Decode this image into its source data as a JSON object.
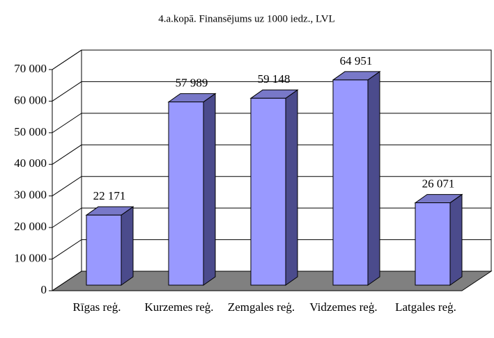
{
  "chart_data": {
    "type": "bar",
    "title": "4.a.kopā. Finansējums uz 1000 iedz., LVL",
    "categories": [
      "Rīgas reģ.",
      "Kurzemes reģ.",
      "Zemgales reģ.",
      "Vidzemes reģ.",
      "Latgales reģ."
    ],
    "values": [
      22171,
      57989,
      59148,
      64951,
      26071
    ],
    "value_labels": [
      "22 171",
      "57 989",
      "59 148",
      "64 951",
      "26 071"
    ],
    "color": "#9999ff",
    "ylim": [
      0,
      70000
    ],
    "yticks": [
      0,
      {
        "value": 10000,
        "label": "10 000"
      },
      {
        "value": 20000,
        "label": "20 000"
      },
      {
        "value": 30000,
        "label": "30 000"
      },
      {
        "value": 40000,
        "label": "40 000"
      },
      {
        "value": 50000,
        "label": "50 000"
      },
      {
        "value": 60000,
        "label": "60 000"
      },
      {
        "value": 70000,
        "label": "70 000"
      }
    ],
    "grid": true
  }
}
